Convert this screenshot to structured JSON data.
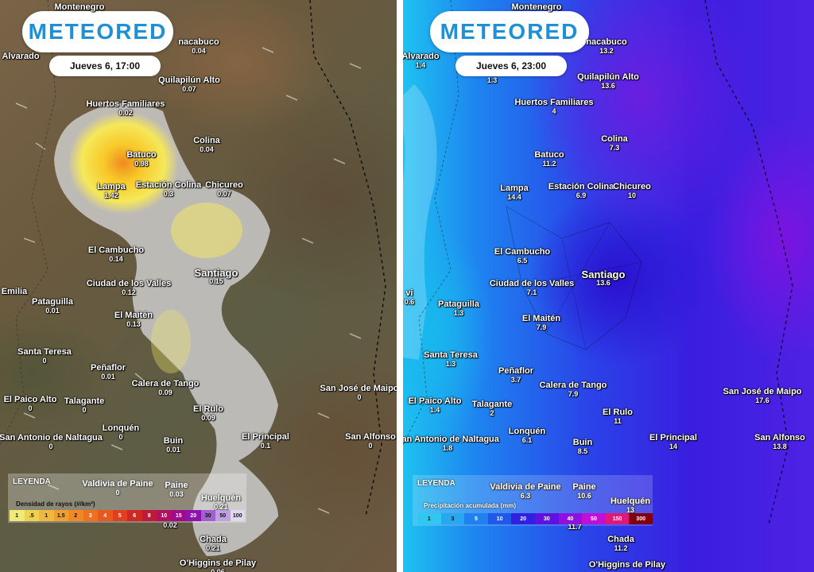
{
  "brand": "METEORED",
  "left_panel": {
    "date": "Jueves 6, 17:00",
    "places": [
      {
        "name": "Montenegro",
        "value": ""
      },
      {
        "name": "Alvarado",
        "value": ""
      },
      {
        "name": "nacabuco",
        "value": "0.04"
      },
      {
        "name": "Quilapilún Alto",
        "value": "0.07"
      },
      {
        "name": "Huertos Familiares",
        "value": "0.02"
      },
      {
        "name": "Colina",
        "value": "0.04"
      },
      {
        "name": "Batuco",
        "value": "0.98"
      },
      {
        "name": "Lampa",
        "value": "1.42"
      },
      {
        "name": "Estación Colina",
        "value": "0.3"
      },
      {
        "name": "Chicureo",
        "value": "0.07"
      },
      {
        "name": "El Cambucho",
        "value": "0.14"
      },
      {
        "name": "Santiago",
        "value": "0.15"
      },
      {
        "name": "Ciudad de los Valles",
        "value": "0.12"
      },
      {
        "name": "Emilia",
        "value": ""
      },
      {
        "name": "Pataguilla",
        "value": "0.01"
      },
      {
        "name": "El Maitén",
        "value": "0.13"
      },
      {
        "name": "Santa Teresa",
        "value": "0"
      },
      {
        "name": "Peñaflor",
        "value": "0.01"
      },
      {
        "name": "Calera de Tango",
        "value": "0.09"
      },
      {
        "name": "San José de Maipo",
        "value": "0"
      },
      {
        "name": "El Paico Alto",
        "value": "0"
      },
      {
        "name": "Talagante",
        "value": "0"
      },
      {
        "name": "El Rulo",
        "value": "0.09"
      },
      {
        "name": "Lonquén",
        "value": "0"
      },
      {
        "name": "El Principal",
        "value": "0.1"
      },
      {
        "name": "San Alfonso",
        "value": "0"
      },
      {
        "name": "San Antonio de Naltagua",
        "value": "0"
      },
      {
        "name": "Buin",
        "value": "0.01"
      },
      {
        "name": "Valdivia de Paine",
        "value": "0"
      },
      {
        "name": "Paine",
        "value": "0.03"
      },
      {
        "name": "Huelquén",
        "value": "0.21"
      },
      {
        "name": "Chada",
        "value": "0.21"
      },
      {
        "name": "O'Higgins de Pilay",
        "value": "0.06"
      },
      {
        "name": "",
        "value": "0.02"
      }
    ],
    "legend": {
      "title": "LEYENDA",
      "subtitle": "Densidad de rayos (#/km²)",
      "ticks": [
        "1",
        ".5",
        "1",
        "1.5",
        "2",
        "3",
        "4",
        "5",
        "6",
        "8",
        "10",
        "15",
        "20",
        "30",
        "50",
        "100"
      ],
      "colors": [
        "#f0e878",
        "#f0d050",
        "#f0b840",
        "#f0a030",
        "#f08828",
        "#f07020",
        "#e85820",
        "#e04020",
        "#d02820",
        "#c01838",
        "#b01060",
        "#a00c88",
        "#9010b0",
        "#a060d0",
        "#c0a0e0",
        "#e0d8f0"
      ]
    }
  },
  "right_panel": {
    "date": "Jueves 6, 23:00",
    "places": [
      {
        "name": "Montenegro",
        "value": ""
      },
      {
        "name": "Alvarado",
        "value": "1.4"
      },
      {
        "name": "nacabuco",
        "value": "13.2"
      },
      {
        "name": "",
        "value": "1.3"
      },
      {
        "name": "Quilapilún Alto",
        "value": "13.6"
      },
      {
        "name": "Huertos Familiares",
        "value": "4"
      },
      {
        "name": "Colina",
        "value": "7.3"
      },
      {
        "name": "Batuco",
        "value": "11.2"
      },
      {
        "name": "Lampa",
        "value": "14.4"
      },
      {
        "name": "Estación Colina",
        "value": "6.9"
      },
      {
        "name": "Chicureo",
        "value": "10"
      },
      {
        "name": "El Cambucho",
        "value": "6.5"
      },
      {
        "name": "Santiago",
        "value": "13.6"
      },
      {
        "name": "Ciudad de los Valles",
        "value": "7.1"
      },
      {
        "name": "vi",
        "value": "0.6"
      },
      {
        "name": "Pataguilla",
        "value": "1.3"
      },
      {
        "name": "El Maitén",
        "value": "7.9"
      },
      {
        "name": "Santa Teresa",
        "value": "1.3"
      },
      {
        "name": "Peñaflor",
        "value": "3.7"
      },
      {
        "name": "Calera de Tango",
        "value": "7.9"
      },
      {
        "name": "San José de Maipo",
        "value": "17.6"
      },
      {
        "name": "El Paico Alto",
        "value": "1.4"
      },
      {
        "name": "Talagante",
        "value": "2"
      },
      {
        "name": "El Rulo",
        "value": "11"
      },
      {
        "name": "Lonquén",
        "value": "6.1"
      },
      {
        "name": "El Principal",
        "value": "14"
      },
      {
        "name": "San Alfonso",
        "value": "13.8"
      },
      {
        "name": "San Antonio de Naltagua",
        "value": "1.8"
      },
      {
        "name": "Buin",
        "value": "8.5"
      },
      {
        "name": "Valdivia de Paine",
        "value": "6.3"
      },
      {
        "name": "Paine",
        "value": "10.6"
      },
      {
        "name": "Huelquén",
        "value": "13"
      },
      {
        "name": "Chada",
        "value": "11.2"
      },
      {
        "name": "O'Higgins de Pilay",
        "value": ""
      },
      {
        "name": "",
        "value": "11.7"
      }
    ],
    "legend": {
      "title": "LEYENDA",
      "subtitle": "Precipitación acumulada (mm)",
      "ticks": [
        "1",
        "3",
        "5",
        "10",
        "20",
        "30",
        "40",
        "50",
        "150",
        "300"
      ],
      "colors": [
        "#30c8f0",
        "#28a8f0",
        "#2080f0",
        "#2058e8",
        "#3020e0",
        "#6010e0",
        "#9010e0",
        "#c010d8",
        "#e01878",
        "#800010"
      ]
    }
  }
}
